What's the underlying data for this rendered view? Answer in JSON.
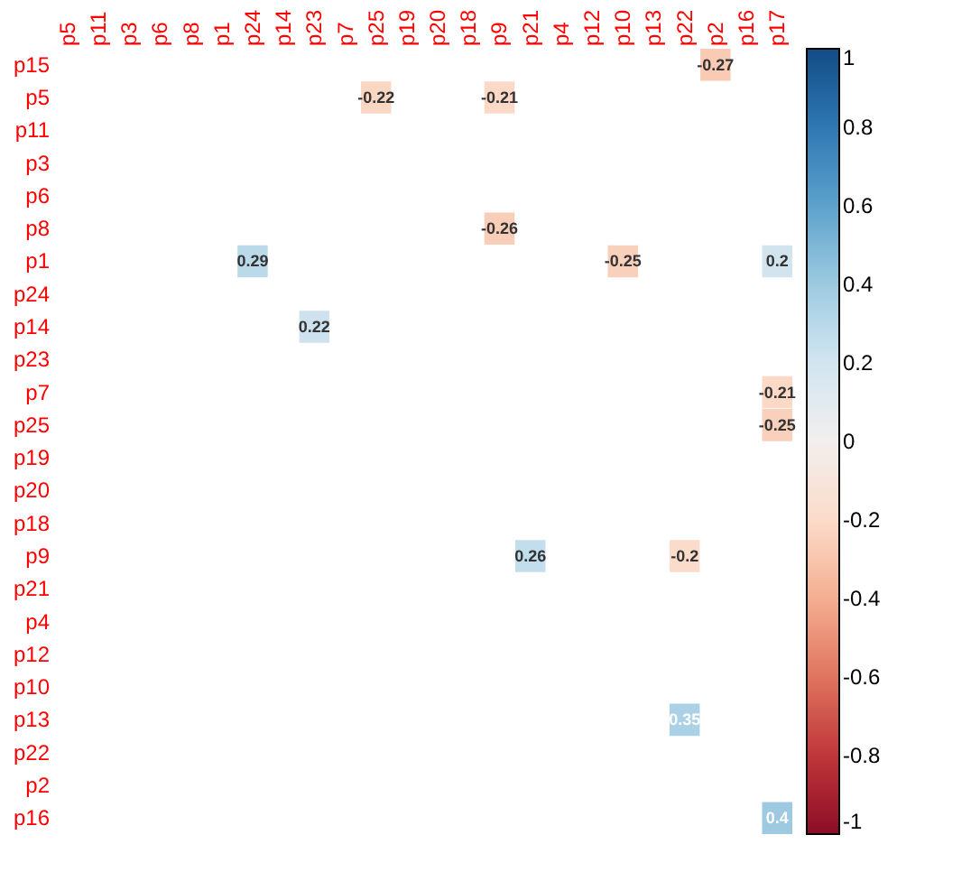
{
  "chart_data": {
    "type": "heatmap",
    "categories": [
      "p5",
      "p11",
      "p3",
      "p6",
      "p8",
      "p1",
      "p24",
      "p14",
      "p23",
      "p7",
      "p25",
      "p19",
      "p20",
      "p18",
      "p9",
      "p21",
      "p4",
      "p12",
      "p10",
      "p13",
      "p22",
      "p2",
      "p16",
      "p17"
    ],
    "y_categories": [
      "p15",
      "p5",
      "p11",
      "p3",
      "p6",
      "p8",
      "p1",
      "p24",
      "p14",
      "p23",
      "p7",
      "p25",
      "p19",
      "p20",
      "p18",
      "p9",
      "p21",
      "p4",
      "p12",
      "p10",
      "p13",
      "p22",
      "p2",
      "p16"
    ],
    "cells": [
      [
        null,
        null,
        null,
        null,
        null,
        null,
        null,
        null,
        null,
        null,
        null,
        null,
        null,
        null,
        null,
        null,
        null,
        null,
        null,
        null,
        null,
        -0.27,
        null,
        null
      ],
      [
        null,
        null,
        null,
        null,
        null,
        null,
        null,
        null,
        null,
        null,
        -0.22,
        null,
        null,
        null,
        -0.21,
        null,
        null,
        null,
        null,
        null,
        null,
        null,
        null,
        null
      ],
      [
        null,
        null,
        null,
        null,
        null,
        null,
        null,
        null,
        null,
        null,
        null,
        null,
        null,
        null,
        null,
        null,
        null,
        null,
        null,
        null,
        null,
        null,
        null,
        null
      ],
      [
        null,
        null,
        null,
        null,
        null,
        null,
        null,
        null,
        null,
        null,
        null,
        null,
        null,
        null,
        null,
        null,
        null,
        null,
        null,
        null,
        null,
        null,
        null,
        null
      ],
      [
        null,
        null,
        null,
        null,
        null,
        null,
        null,
        null,
        null,
        null,
        null,
        null,
        null,
        null,
        null,
        null,
        null,
        null,
        null,
        null,
        null,
        null,
        null,
        null
      ],
      [
        null,
        null,
        null,
        null,
        null,
        null,
        null,
        null,
        null,
        null,
        null,
        null,
        null,
        null,
        -0.26,
        null,
        null,
        null,
        null,
        null,
        null,
        null,
        null,
        null
      ],
      [
        null,
        null,
        null,
        null,
        null,
        null,
        0.29,
        null,
        null,
        null,
        null,
        null,
        null,
        null,
        null,
        null,
        null,
        null,
        -0.25,
        null,
        null,
        null,
        null,
        0.2
      ],
      [
        null,
        null,
        null,
        null,
        null,
        null,
        null,
        null,
        null,
        null,
        null,
        null,
        null,
        null,
        null,
        null,
        null,
        null,
        null,
        null,
        null,
        null,
        null,
        null
      ],
      [
        null,
        null,
        null,
        null,
        null,
        null,
        null,
        null,
        0.22,
        null,
        null,
        null,
        null,
        null,
        null,
        null,
        null,
        null,
        null,
        null,
        null,
        null,
        null,
        null
      ],
      [
        null,
        null,
        null,
        null,
        null,
        null,
        null,
        null,
        null,
        null,
        null,
        null,
        null,
        null,
        null,
        null,
        null,
        null,
        null,
        null,
        null,
        null,
        null,
        null
      ],
      [
        null,
        null,
        null,
        null,
        null,
        null,
        null,
        null,
        null,
        null,
        null,
        null,
        null,
        null,
        null,
        null,
        null,
        null,
        null,
        null,
        null,
        null,
        null,
        -0.21
      ],
      [
        null,
        null,
        null,
        null,
        null,
        null,
        null,
        null,
        null,
        null,
        null,
        null,
        null,
        null,
        null,
        null,
        null,
        null,
        null,
        null,
        null,
        null,
        null,
        -0.25
      ],
      [
        null,
        null,
        null,
        null,
        null,
        null,
        null,
        null,
        null,
        null,
        null,
        null,
        null,
        null,
        null,
        null,
        null,
        null,
        null,
        null,
        null,
        null,
        null,
        null
      ],
      [
        null,
        null,
        null,
        null,
        null,
        null,
        null,
        null,
        null,
        null,
        null,
        null,
        null,
        null,
        null,
        null,
        null,
        null,
        null,
        null,
        null,
        null,
        null,
        null
      ],
      [
        null,
        null,
        null,
        null,
        null,
        null,
        null,
        null,
        null,
        null,
        null,
        null,
        null,
        null,
        null,
        null,
        null,
        null,
        null,
        null,
        null,
        null,
        null,
        null
      ],
      [
        null,
        null,
        null,
        null,
        null,
        null,
        null,
        null,
        null,
        null,
        null,
        null,
        null,
        null,
        null,
        0.26,
        null,
        null,
        null,
        null,
        -0.2,
        null,
        null,
        null
      ],
      [
        null,
        null,
        null,
        null,
        null,
        null,
        null,
        null,
        null,
        null,
        null,
        null,
        null,
        null,
        null,
        null,
        null,
        null,
        null,
        null,
        null,
        null,
        null,
        null
      ],
      [
        null,
        null,
        null,
        null,
        null,
        null,
        null,
        null,
        null,
        null,
        null,
        null,
        null,
        null,
        null,
        null,
        null,
        null,
        null,
        null,
        null,
        null,
        null,
        null
      ],
      [
        null,
        null,
        null,
        null,
        null,
        null,
        null,
        null,
        null,
        null,
        null,
        null,
        null,
        null,
        null,
        null,
        null,
        null,
        null,
        null,
        null,
        null,
        null,
        null
      ],
      [
        null,
        null,
        null,
        null,
        null,
        null,
        null,
        null,
        null,
        null,
        null,
        null,
        null,
        null,
        null,
        null,
        null,
        null,
        null,
        null,
        null,
        null,
        null,
        null
      ],
      [
        null,
        null,
        null,
        null,
        null,
        null,
        null,
        null,
        null,
        null,
        null,
        null,
        null,
        null,
        null,
        null,
        null,
        null,
        null,
        null,
        0.35,
        null,
        null,
        null
      ],
      [
        null,
        null,
        null,
        null,
        null,
        null,
        null,
        null,
        null,
        null,
        null,
        null,
        null,
        null,
        null,
        null,
        null,
        null,
        null,
        null,
        null,
        null,
        null,
        null
      ],
      [
        null,
        null,
        null,
        null,
        null,
        null,
        null,
        null,
        null,
        null,
        null,
        null,
        null,
        null,
        null,
        null,
        null,
        null,
        null,
        null,
        null,
        null,
        null,
        null
      ],
      [
        null,
        null,
        null,
        null,
        null,
        null,
        null,
        null,
        null,
        null,
        null,
        null,
        null,
        null,
        null,
        null,
        null,
        null,
        null,
        null,
        null,
        null,
        null,
        0.4
      ]
    ],
    "clim": [
      -1,
      1
    ],
    "cticks": [
      -1,
      -0.8,
      -0.6,
      -0.4,
      -0.2,
      0,
      0.2,
      0.4,
      0.6,
      0.8,
      1
    ],
    "data_labels": true
  }
}
